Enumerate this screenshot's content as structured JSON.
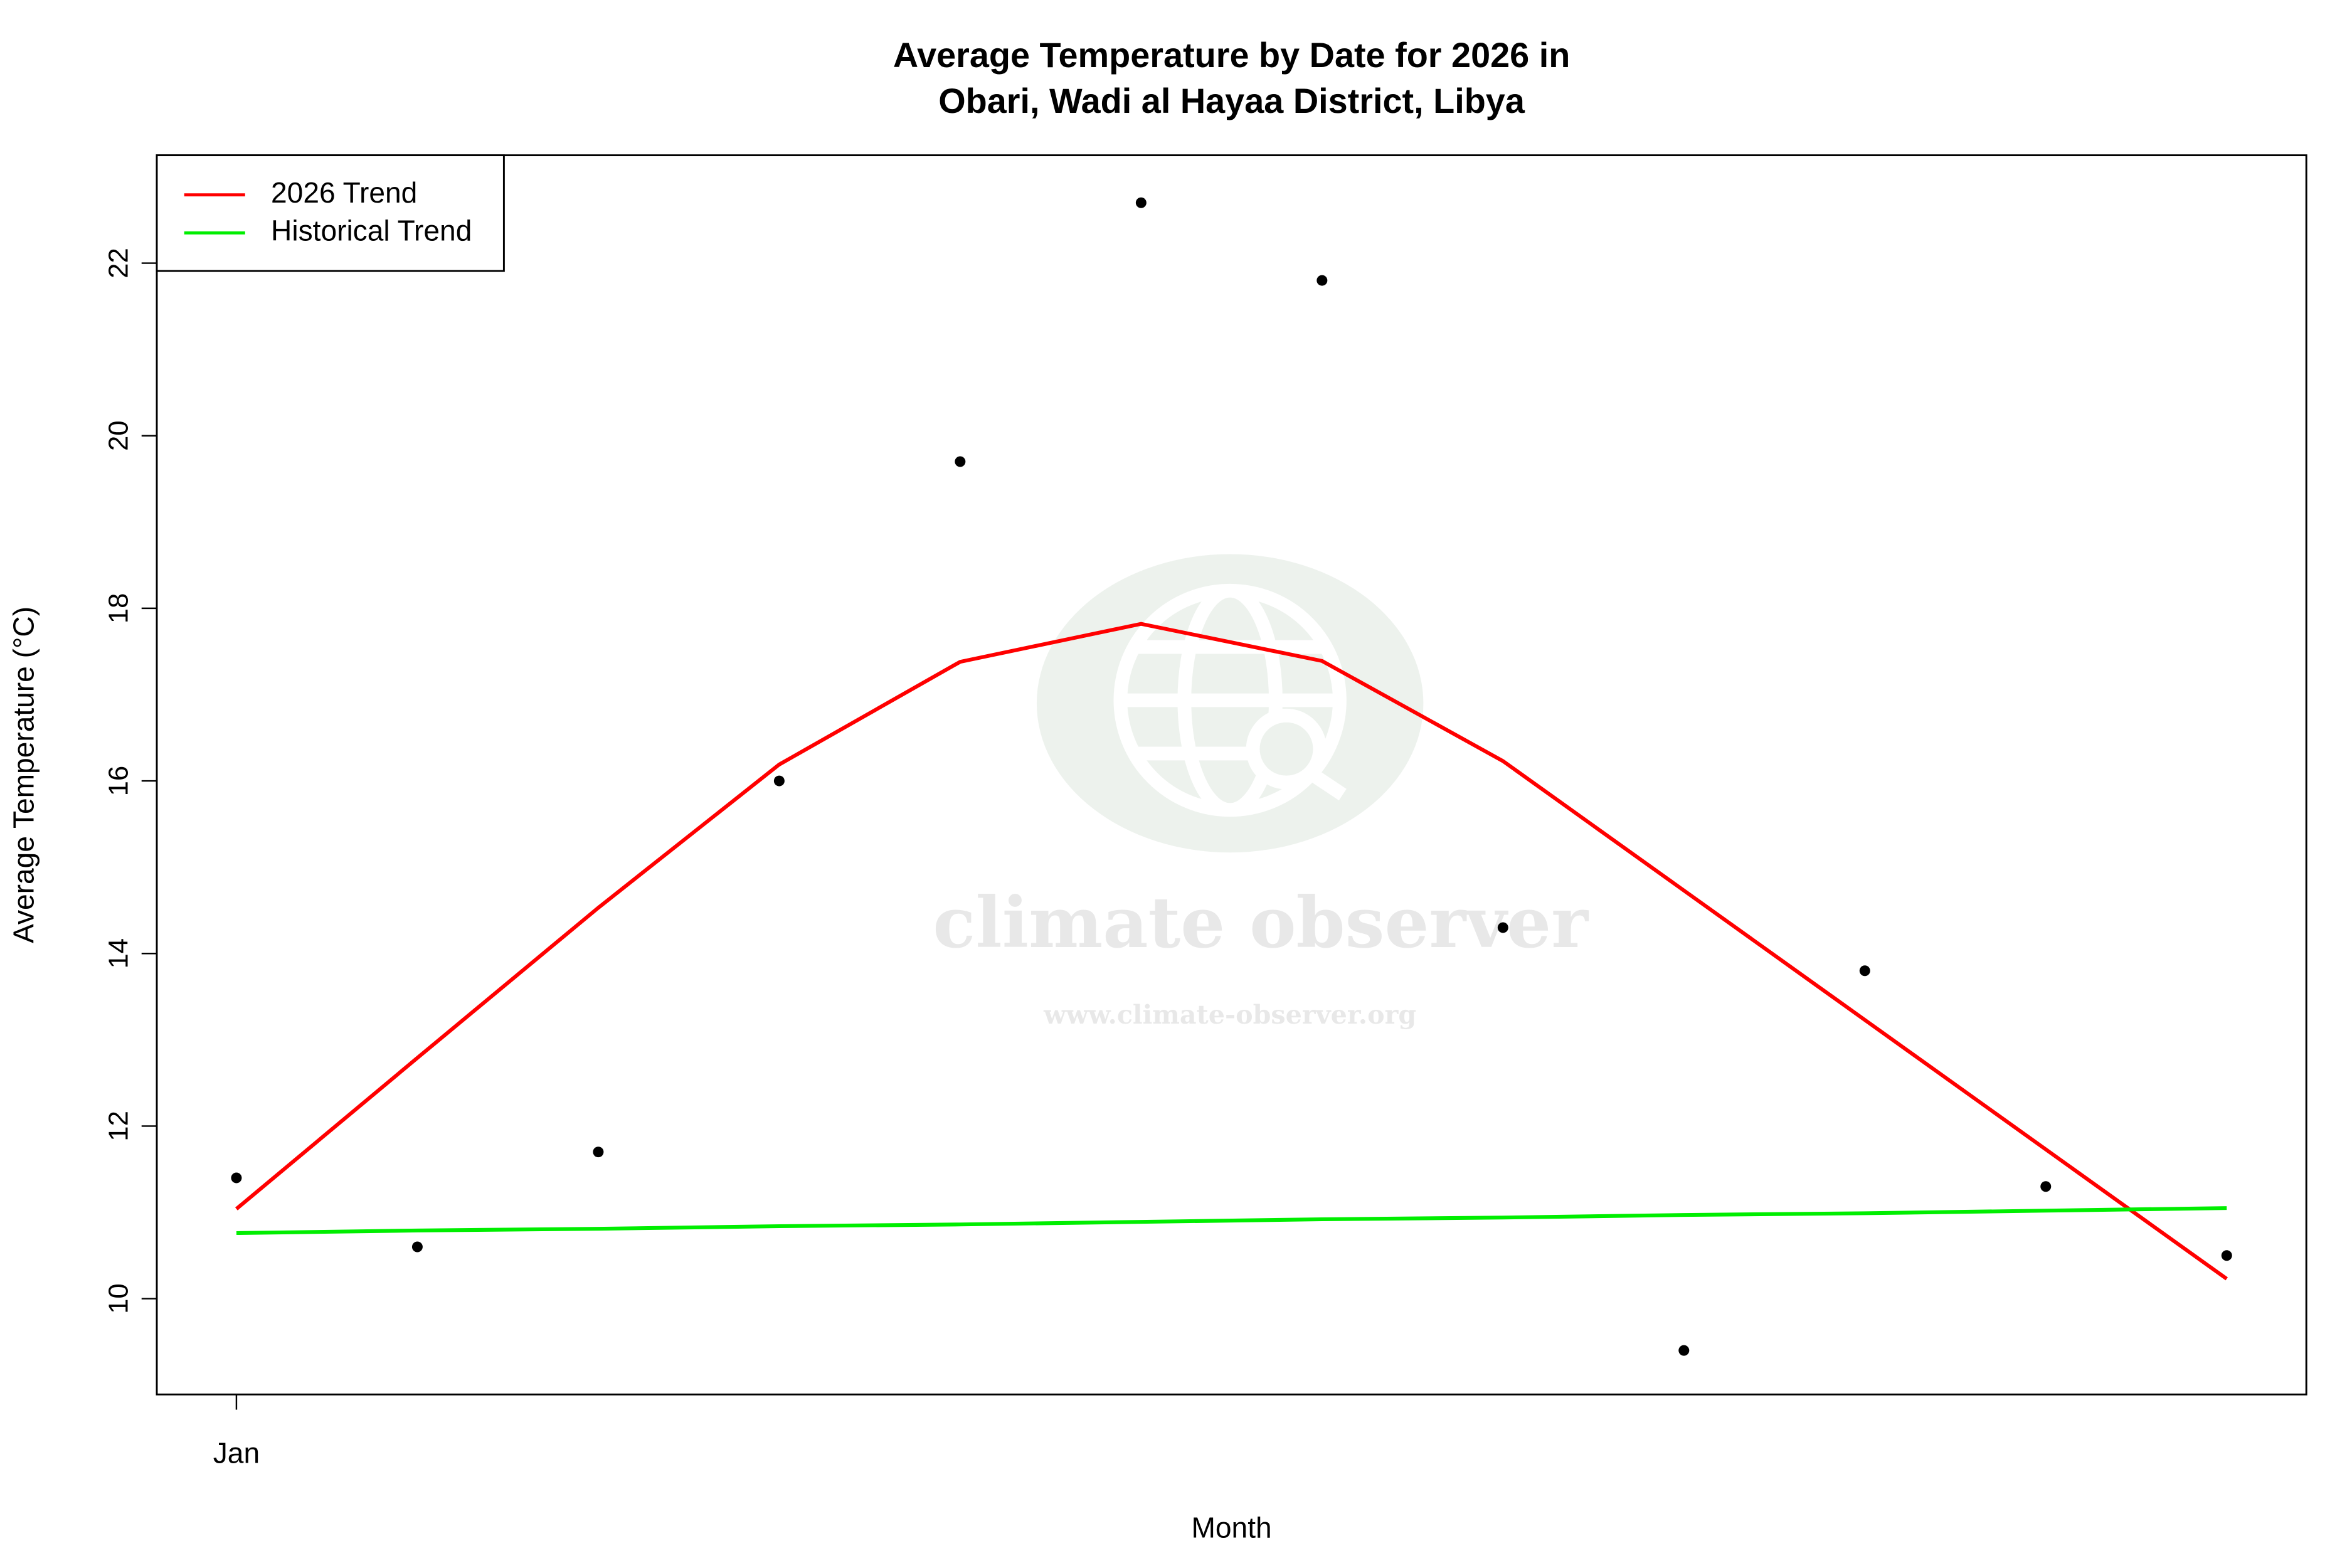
{
  "chart_data": {
    "type": "scatter",
    "title": "Average Temperature by Date for 2026 in",
    "subtitle": "Obari, Wadi al Hayaa District, Libya",
    "x_label": "Month",
    "y_label": "Average Temperature (°C)",
    "categories": [
      "Jan",
      null,
      null,
      null,
      null,
      null,
      null,
      null,
      null,
      null,
      null,
      null
    ],
    "values": [
      11.4,
      10.6,
      11.7,
      16.0,
      19.7,
      22.7,
      21.8,
      14.3,
      9.4,
      13.8,
      11.3,
      10.5
    ],
    "color": "#000000",
    "series": [
      {
        "name": "2026 Trend",
        "color": "#ff0000",
        "values": [
          11.04,
          12.79,
          14.53,
          16.19,
          17.38,
          17.82,
          17.39,
          16.23,
          14.73,
          13.23,
          11.73,
          10.23
        ]
      },
      {
        "name": "Historical Trend",
        "color": "#00ee00",
        "values": [
          10.76,
          10.79,
          10.81,
          10.84,
          10.86,
          10.89,
          10.92,
          10.94,
          10.97,
          10.99,
          11.02,
          11.05
        ]
      }
    ],
    "ylim": [
      8.89,
      23.25
    ],
    "yticks": [
      10,
      12,
      14,
      16,
      18,
      20,
      22
    ],
    "legend": "top-left",
    "watermark": {
      "name": "climate observer",
      "url": "www.climate-observer.org"
    }
  }
}
